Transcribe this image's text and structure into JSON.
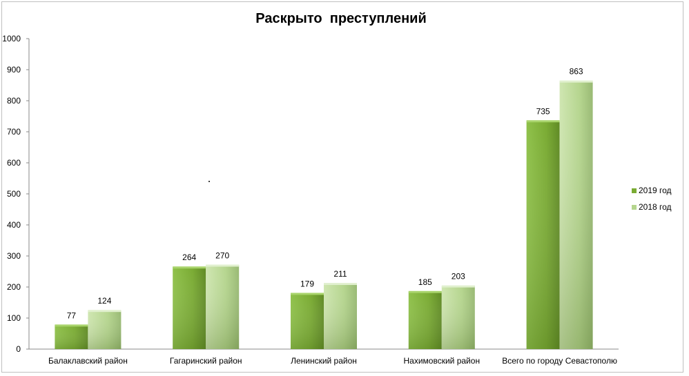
{
  "chart_data": {
    "type": "bar",
    "title": "Раскрыто  преступлений",
    "xlabel": "",
    "ylabel": "",
    "ylim": [
      0,
      1000
    ],
    "yticks": [
      0,
      100,
      200,
      300,
      400,
      500,
      600,
      700,
      800,
      900,
      1000
    ],
    "grid": false,
    "legend_position": "right",
    "categories": [
      "Балаклавский район",
      "Гагаринский район",
      "Ленинский район",
      "Нахимовский район",
      "Всего по городу Севастополю"
    ],
    "series": [
      {
        "name": "2019 год",
        "values": [
          77,
          264,
          179,
          185,
          735
        ],
        "color": "#7aab33"
      },
      {
        "name": "2018 год",
        "values": [
          124,
          270,
          211,
          203,
          863
        ],
        "color": "#b5d58e"
      }
    ]
  }
}
